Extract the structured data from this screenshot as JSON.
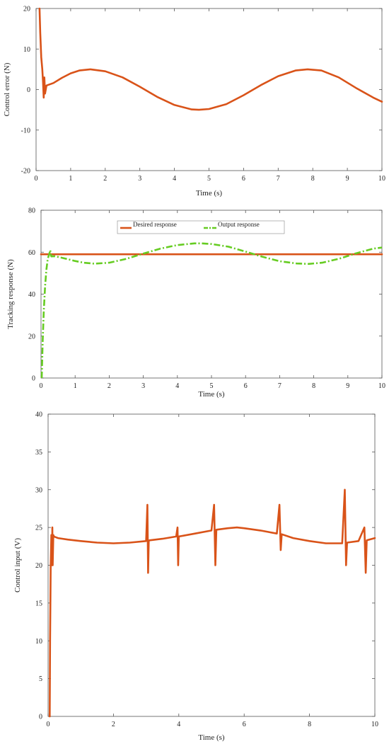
{
  "chart_data": [
    {
      "type": "line",
      "title": "",
      "xlabel": "Time (s)",
      "ylabel": "Control error (N)",
      "xlim": [
        0,
        10
      ],
      "ylim": [
        -20,
        20
      ],
      "xticks": [
        "0",
        "1",
        "2",
        "3",
        "4",
        "5",
        "6",
        "7",
        "8",
        "9",
        "10"
      ],
      "yticks": [
        "-20",
        "-10",
        "0",
        "10",
        "20"
      ],
      "grid": false,
      "legend": null,
      "series": [
        {
          "color": "#d95319",
          "style": "solid",
          "x": [
            0.1,
            0.12,
            0.15,
            0.18,
            0.2,
            0.22,
            0.24,
            0.26,
            0.3,
            0.5,
            0.75,
            1.0,
            1.25,
            1.57,
            2.0,
            2.5,
            3.0,
            3.5,
            4.0,
            4.5,
            4.71,
            5.0,
            5.5,
            6.0,
            6.5,
            7.0,
            7.5,
            7.85,
            8.25,
            8.75,
            9.25,
            9.75,
            10.0
          ],
          "y": [
            20,
            14,
            8,
            5,
            2,
            -2,
            3,
            -1,
            1,
            1.6,
            2.9,
            4.0,
            4.7,
            5.0,
            4.5,
            3.0,
            0.7,
            -1.8,
            -3.8,
            -4.9,
            -5.0,
            -4.8,
            -3.6,
            -1.4,
            1.1,
            3.3,
            4.7,
            5.0,
            4.7,
            3.0,
            0.4,
            -2.0,
            -3.0
          ]
        }
      ]
    },
    {
      "type": "line",
      "title": "",
      "xlabel": "Time (s)",
      "ylabel": "Tracking response (N)",
      "xlim": [
        0,
        10
      ],
      "ylim": [
        0,
        80
      ],
      "xticks": [
        "0",
        "1",
        "2",
        "3",
        "4",
        "5",
        "6",
        "7",
        "8",
        "9",
        "10"
      ],
      "yticks": [
        "0",
        "20",
        "40",
        "60",
        "80"
      ],
      "grid": false,
      "legend": "top-center",
      "series": [
        {
          "name": "Desired response",
          "color": "#d95319",
          "style": "solid",
          "x": [
            0,
            10
          ],
          "y": [
            59,
            59
          ]
        },
        {
          "name": "Output response",
          "color": "#66cc22",
          "style": "dashdot",
          "x": [
            0.02,
            0.05,
            0.08,
            0.12,
            0.16,
            0.2,
            0.24,
            0.27,
            0.3,
            0.4,
            0.6,
            0.8,
            1.0,
            1.25,
            1.57,
            2.0,
            2.5,
            3.0,
            3.5,
            4.0,
            4.5,
            4.71,
            5.0,
            5.5,
            6.0,
            6.5,
            7.0,
            7.5,
            7.85,
            8.25,
            8.75,
            9.25,
            9.75,
            10.0
          ],
          "y": [
            0,
            18,
            32,
            44,
            52,
            57,
            59,
            61,
            58,
            58.1,
            57.4,
            56.6,
            55.8,
            55,
            54.5,
            55,
            56.8,
            59.3,
            61.7,
            63.4,
            64.2,
            64.2,
            63.9,
            62.6,
            60.3,
            57.8,
            55.7,
            54.6,
            54.4,
            55,
            56.9,
            59.5,
            61.7,
            62.2
          ]
        }
      ]
    },
    {
      "type": "line",
      "title": "",
      "xlabel": "Time (s)",
      "ylabel": "Control input (V)",
      "xlim": [
        0,
        10
      ],
      "ylim": [
        0,
        40
      ],
      "xticks": [
        "0",
        "2",
        "4",
        "6",
        "8",
        "10"
      ],
      "yticks": [
        "0",
        "5",
        "10",
        "15",
        "20",
        "25",
        "30",
        "35",
        "40"
      ],
      "grid": false,
      "legend": null,
      "series": [
        {
          "color": "#d95319",
          "style": "solid",
          "x": [
            0.05,
            0.06,
            0.08,
            0.1,
            0.12,
            0.13,
            0.14,
            0.16,
            0.18,
            0.3,
            0.6,
            1.0,
            1.5,
            2.0,
            2.5,
            3.0,
            3.04,
            3.06,
            3.08,
            3.1,
            3.5,
            3.92,
            3.96,
            3.98,
            4.0,
            4.5,
            5.0,
            5.08,
            5.12,
            5.15,
            5.5,
            5.78,
            6.0,
            6.5,
            7.0,
            7.08,
            7.12,
            7.15,
            7.5,
            8.0,
            8.5,
            9.0,
            9.08,
            9.12,
            9.15,
            9.5,
            9.68,
            9.72,
            9.75,
            10.0
          ],
          "y": [
            0,
            10,
            20,
            24,
            20,
            25,
            20,
            24,
            23.8,
            23.6,
            23.4,
            23.2,
            23.0,
            22.9,
            23.0,
            23.2,
            28,
            19,
            23.2,
            23.3,
            23.5,
            23.8,
            25,
            20,
            23.8,
            24.2,
            24.6,
            28,
            20,
            24.7,
            24.9,
            25.0,
            24.9,
            24.6,
            24.2,
            28,
            22,
            24.1,
            23.6,
            23.2,
            22.9,
            22.9,
            30,
            20,
            23.0,
            23.2,
            25,
            19,
            23.3,
            23.6
          ]
        }
      ]
    }
  ]
}
